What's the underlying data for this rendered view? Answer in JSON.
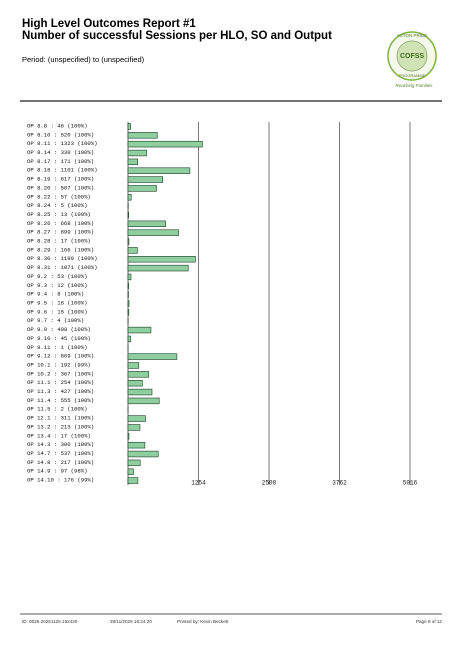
{
  "header": {
    "title": "High Level Outcomes Report #1",
    "subtitle": "Number of successful Sessions per HLO, SO and Output",
    "period": "Period: (unspecified) to (unspecified)",
    "logo_top": "ASTON PRIDE",
    "logo_mid": "COFSS",
    "logo_bottom": "PROGRAMME",
    "logo_tagline": "Reaching Families"
  },
  "chart_data": {
    "type": "barh",
    "categories": [
      "OP 8.8",
      "OP 8.10",
      "OP 8.11",
      "OP 8.14",
      "OP 8.17",
      "OP 8.18",
      "OP 8.19",
      "OP 8.20",
      "OP 8.22",
      "OP 8.24",
      "OP 8.25",
      "OP 8.26",
      "OP 8.27",
      "OP 8.28",
      "OP 8.29",
      "OP 8.30",
      "OP 8.31",
      "OP 9.2",
      "OP 9.3",
      "OP 9.4",
      "OP 9.5",
      "OP 9.6",
      "OP 9.7",
      "OP 9.9",
      "OP 9.10",
      "OP 9.11",
      "OP 9.12",
      "OP 10.1",
      "OP 10.2",
      "OP 11.1",
      "OP 11.3",
      "OP 11.4",
      "OP 11.5",
      "OP 12.1",
      "OP 13.2",
      "OP 13.4",
      "OP 14.3",
      "OP 14.7",
      "OP 14.8",
      "OP 14.9",
      "OP 14.10"
    ],
    "values": [
      46,
      520,
      1323,
      330,
      171,
      1101,
      617,
      507,
      57,
      5,
      13,
      668,
      899,
      17,
      166,
      1199,
      1071,
      53,
      12,
      8,
      18,
      15,
      4,
      408,
      45,
      1,
      869,
      192,
      367,
      254,
      427,
      555,
      2,
      311,
      213,
      17,
      300,
      537,
      217,
      97,
      176
    ],
    "value_labels": [
      "46 (100%)",
      "520 (100%)",
      "1323 (100%)",
      "330 (100%)",
      "171 (100%)",
      "1101 (100%)",
      "617 (100%)",
      "507 (100%)",
      "57 (100%)",
      "5 (100%)",
      "13 (100%)",
      "668 (100%)",
      "899 (100%)",
      "17 (100%)",
      "166 (100%)",
      "1199 (100%)",
      "1071 (100%)",
      "53 (100%)",
      "12 (100%)",
      "8 (100%)",
      "18 (100%)",
      "15 (100%)",
      "4 (100%)",
      "408 (100%)",
      "45 (100%)",
      "1 (100%)",
      "869 (100%)",
      "192 (99%)",
      "367 (100%)",
      "254 (100%)",
      "427 (100%)",
      "555 (100%)",
      "2 (100%)",
      "311 (100%)",
      "213 (100%)",
      "17 (100%)",
      "300 (100%)",
      "537 (100%)",
      "217 (100%)",
      "97 (98%)",
      "176 (99%)"
    ],
    "color": "#8fcf9f",
    "xlim": [
      0,
      5016
    ],
    "xticks": [
      1254,
      2508,
      3762,
      5016
    ],
    "grid": true
  },
  "footer": {
    "id": "ID: 0026.20251128.162420",
    "date": "28/11/2025 16:24:20",
    "printed_by": "Printed by: Kevin Beckett",
    "page": "Page 8 of 12"
  }
}
